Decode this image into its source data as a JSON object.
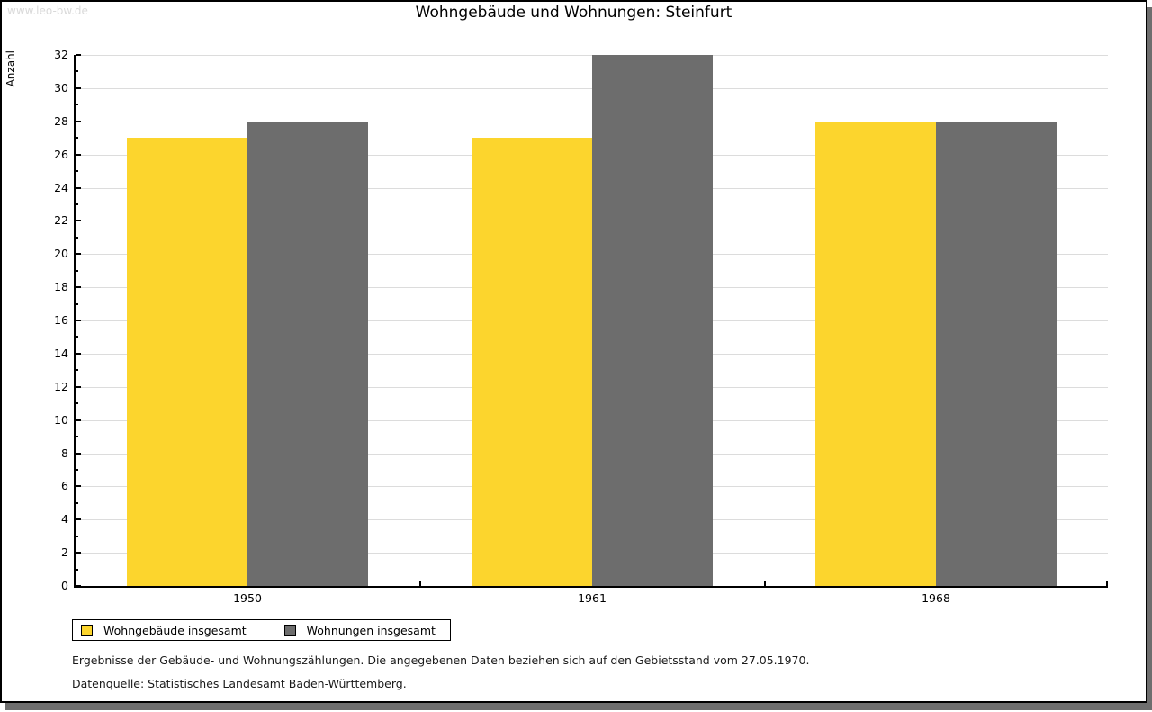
{
  "watermark": "www.leo-bw.de",
  "chart_data": {
    "type": "bar",
    "title": "Wohngebäude und Wohnungen: Steinfurt",
    "categories": [
      "1950",
      "1961",
      "1968"
    ],
    "series": [
      {
        "name": "Wohngebäude insgesamt",
        "color": "#FCD52D",
        "values": [
          27,
          27,
          28
        ]
      },
      {
        "name": "Wohnungen insgesamt",
        "color": "#6D6D6D",
        "values": [
          28,
          32,
          28
        ]
      }
    ],
    "xlabel": "",
    "ylabel": "Anzahl",
    "ylim": [
      0,
      32
    ],
    "ytick_step": 2,
    "minor_tick_step": 1,
    "grid": true,
    "legend_position": "bottom-left"
  },
  "footer": {
    "line1": "Ergebnisse der Gebäude- und Wohnungszählungen. Die angegebenen Daten beziehen sich auf den Gebietsstand vom 27.05.1970.",
    "line2": "Datenquelle: Statistisches Landesamt Baden-Württemberg."
  }
}
